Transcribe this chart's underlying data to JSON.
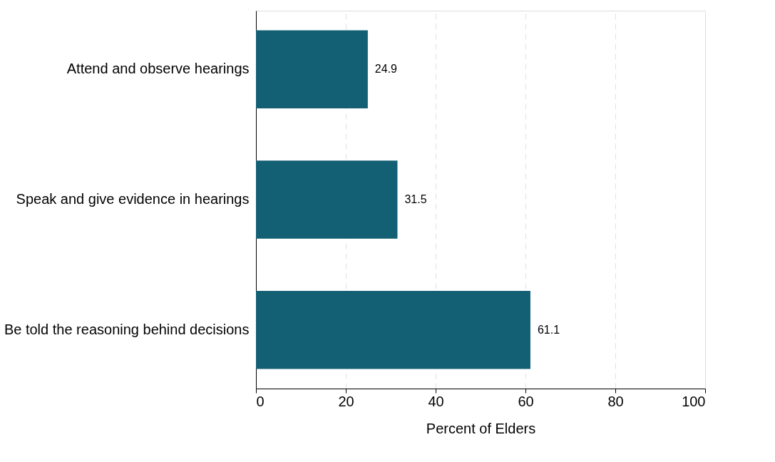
{
  "chart_data": {
    "type": "bar",
    "orientation": "horizontal",
    "xlabel": "Percent of Elders",
    "categories": [
      "Attend and observe hearings",
      "Speak and give evidence in hearings",
      "Be told the reasoning behind decisions"
    ],
    "values": [
      24.9,
      31.5,
      61.1
    ],
    "color": "#135f73",
    "xlim": [
      0,
      100
    ],
    "xticks": [
      0,
      20,
      40,
      60,
      80,
      100
    ],
    "grid": "x",
    "data_labels": true
  }
}
